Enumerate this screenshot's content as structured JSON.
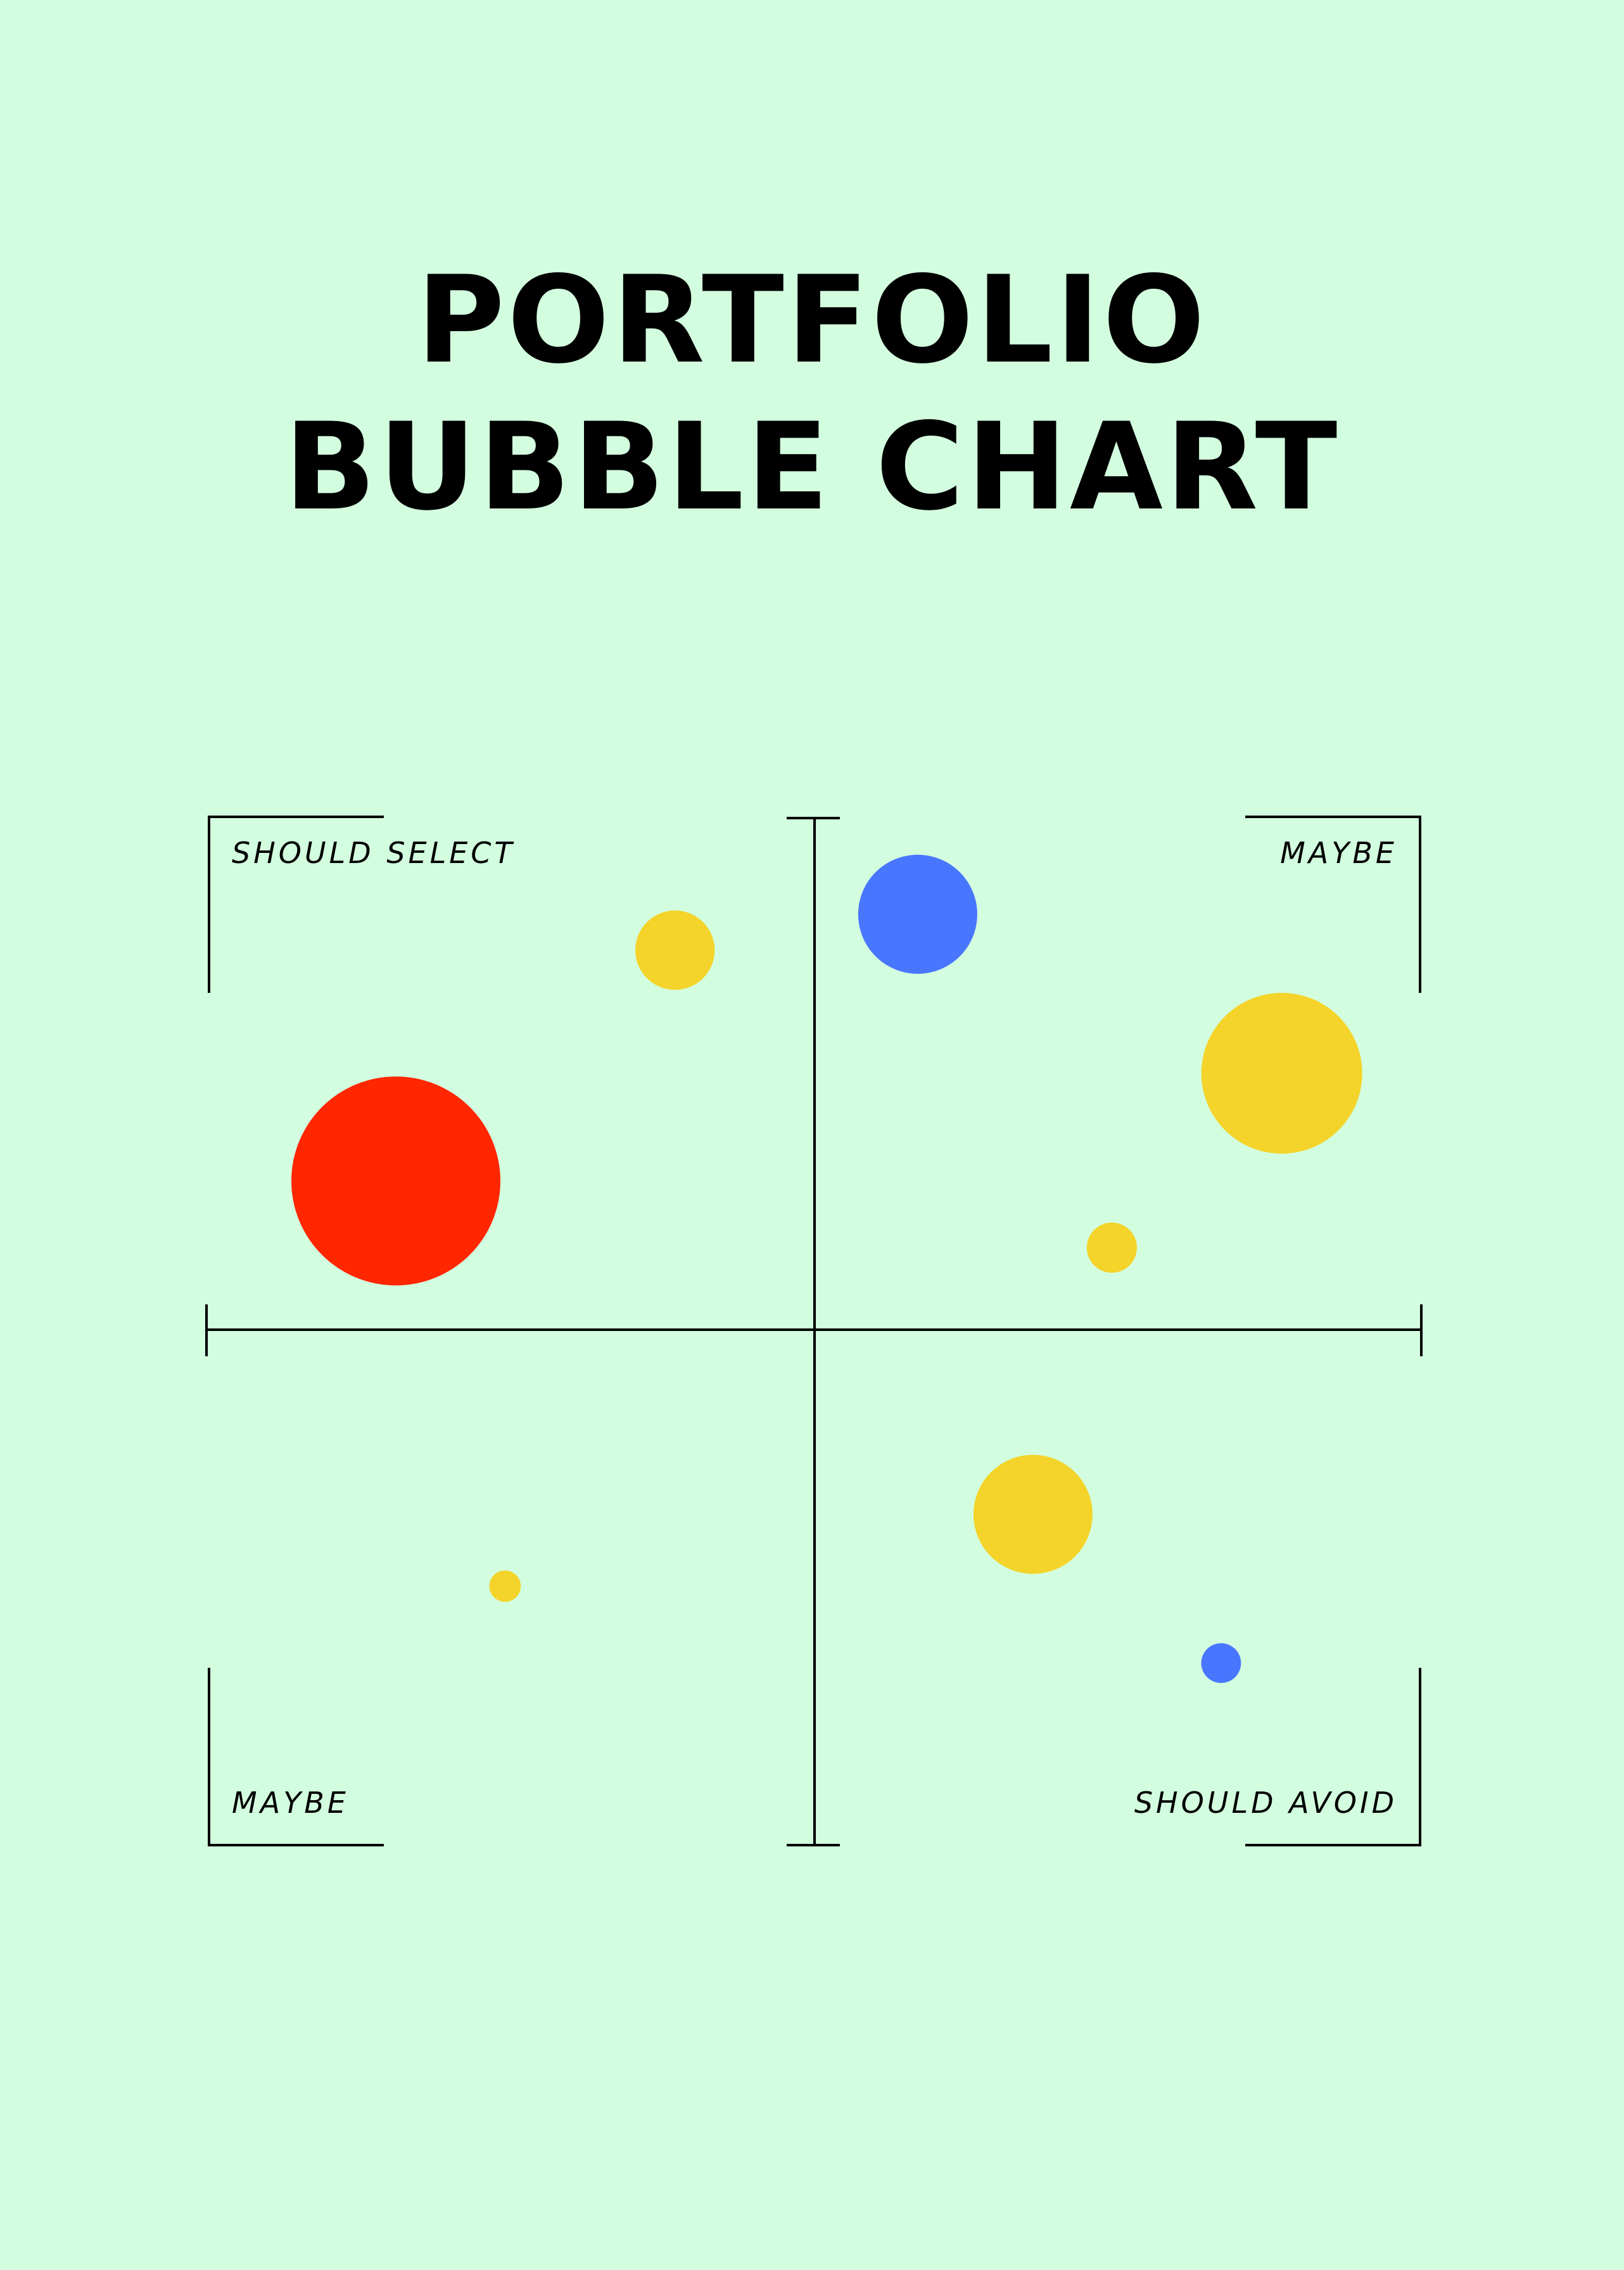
{
  "title": {
    "line1": "PORTFOLIO",
    "line2": "BUBBLE CHART"
  },
  "colors": {
    "background": "#d3fddf",
    "axis": "#000000",
    "red": "#ff2600",
    "yellow": "#f4d42a",
    "blue": "#4976ff"
  },
  "chart_data": {
    "type": "scatter",
    "title": "PORTFOLIO BUBBLE CHART",
    "xlabel": "",
    "ylabel": "",
    "xlim": [
      -1,
      1
    ],
    "ylim": [
      -1,
      1
    ],
    "grid": false,
    "quadrant_labels": {
      "top_left": "SHOULD SELECT",
      "top_right": "MAYBE",
      "bottom_left": "MAYBE",
      "bottom_right": "SHOULD AVOID"
    },
    "points": [
      {
        "x": -0.69,
        "y": 0.29,
        "size": 1.0,
        "color": "red"
      },
      {
        "x": -0.23,
        "y": 0.74,
        "size": 0.38,
        "color": "yellow"
      },
      {
        "x": 0.17,
        "y": 0.81,
        "size": 0.57,
        "color": "blue"
      },
      {
        "x": 0.77,
        "y": 0.5,
        "size": 0.77,
        "color": "yellow"
      },
      {
        "x": 0.49,
        "y": 0.16,
        "size": 0.24,
        "color": "yellow"
      },
      {
        "x": 0.36,
        "y": -0.36,
        "size": 0.57,
        "color": "yellow"
      },
      {
        "x": 0.67,
        "y": -0.65,
        "size": 0.19,
        "color": "blue"
      },
      {
        "x": -0.51,
        "y": -0.5,
        "size": 0.15,
        "color": "yellow"
      }
    ]
  }
}
